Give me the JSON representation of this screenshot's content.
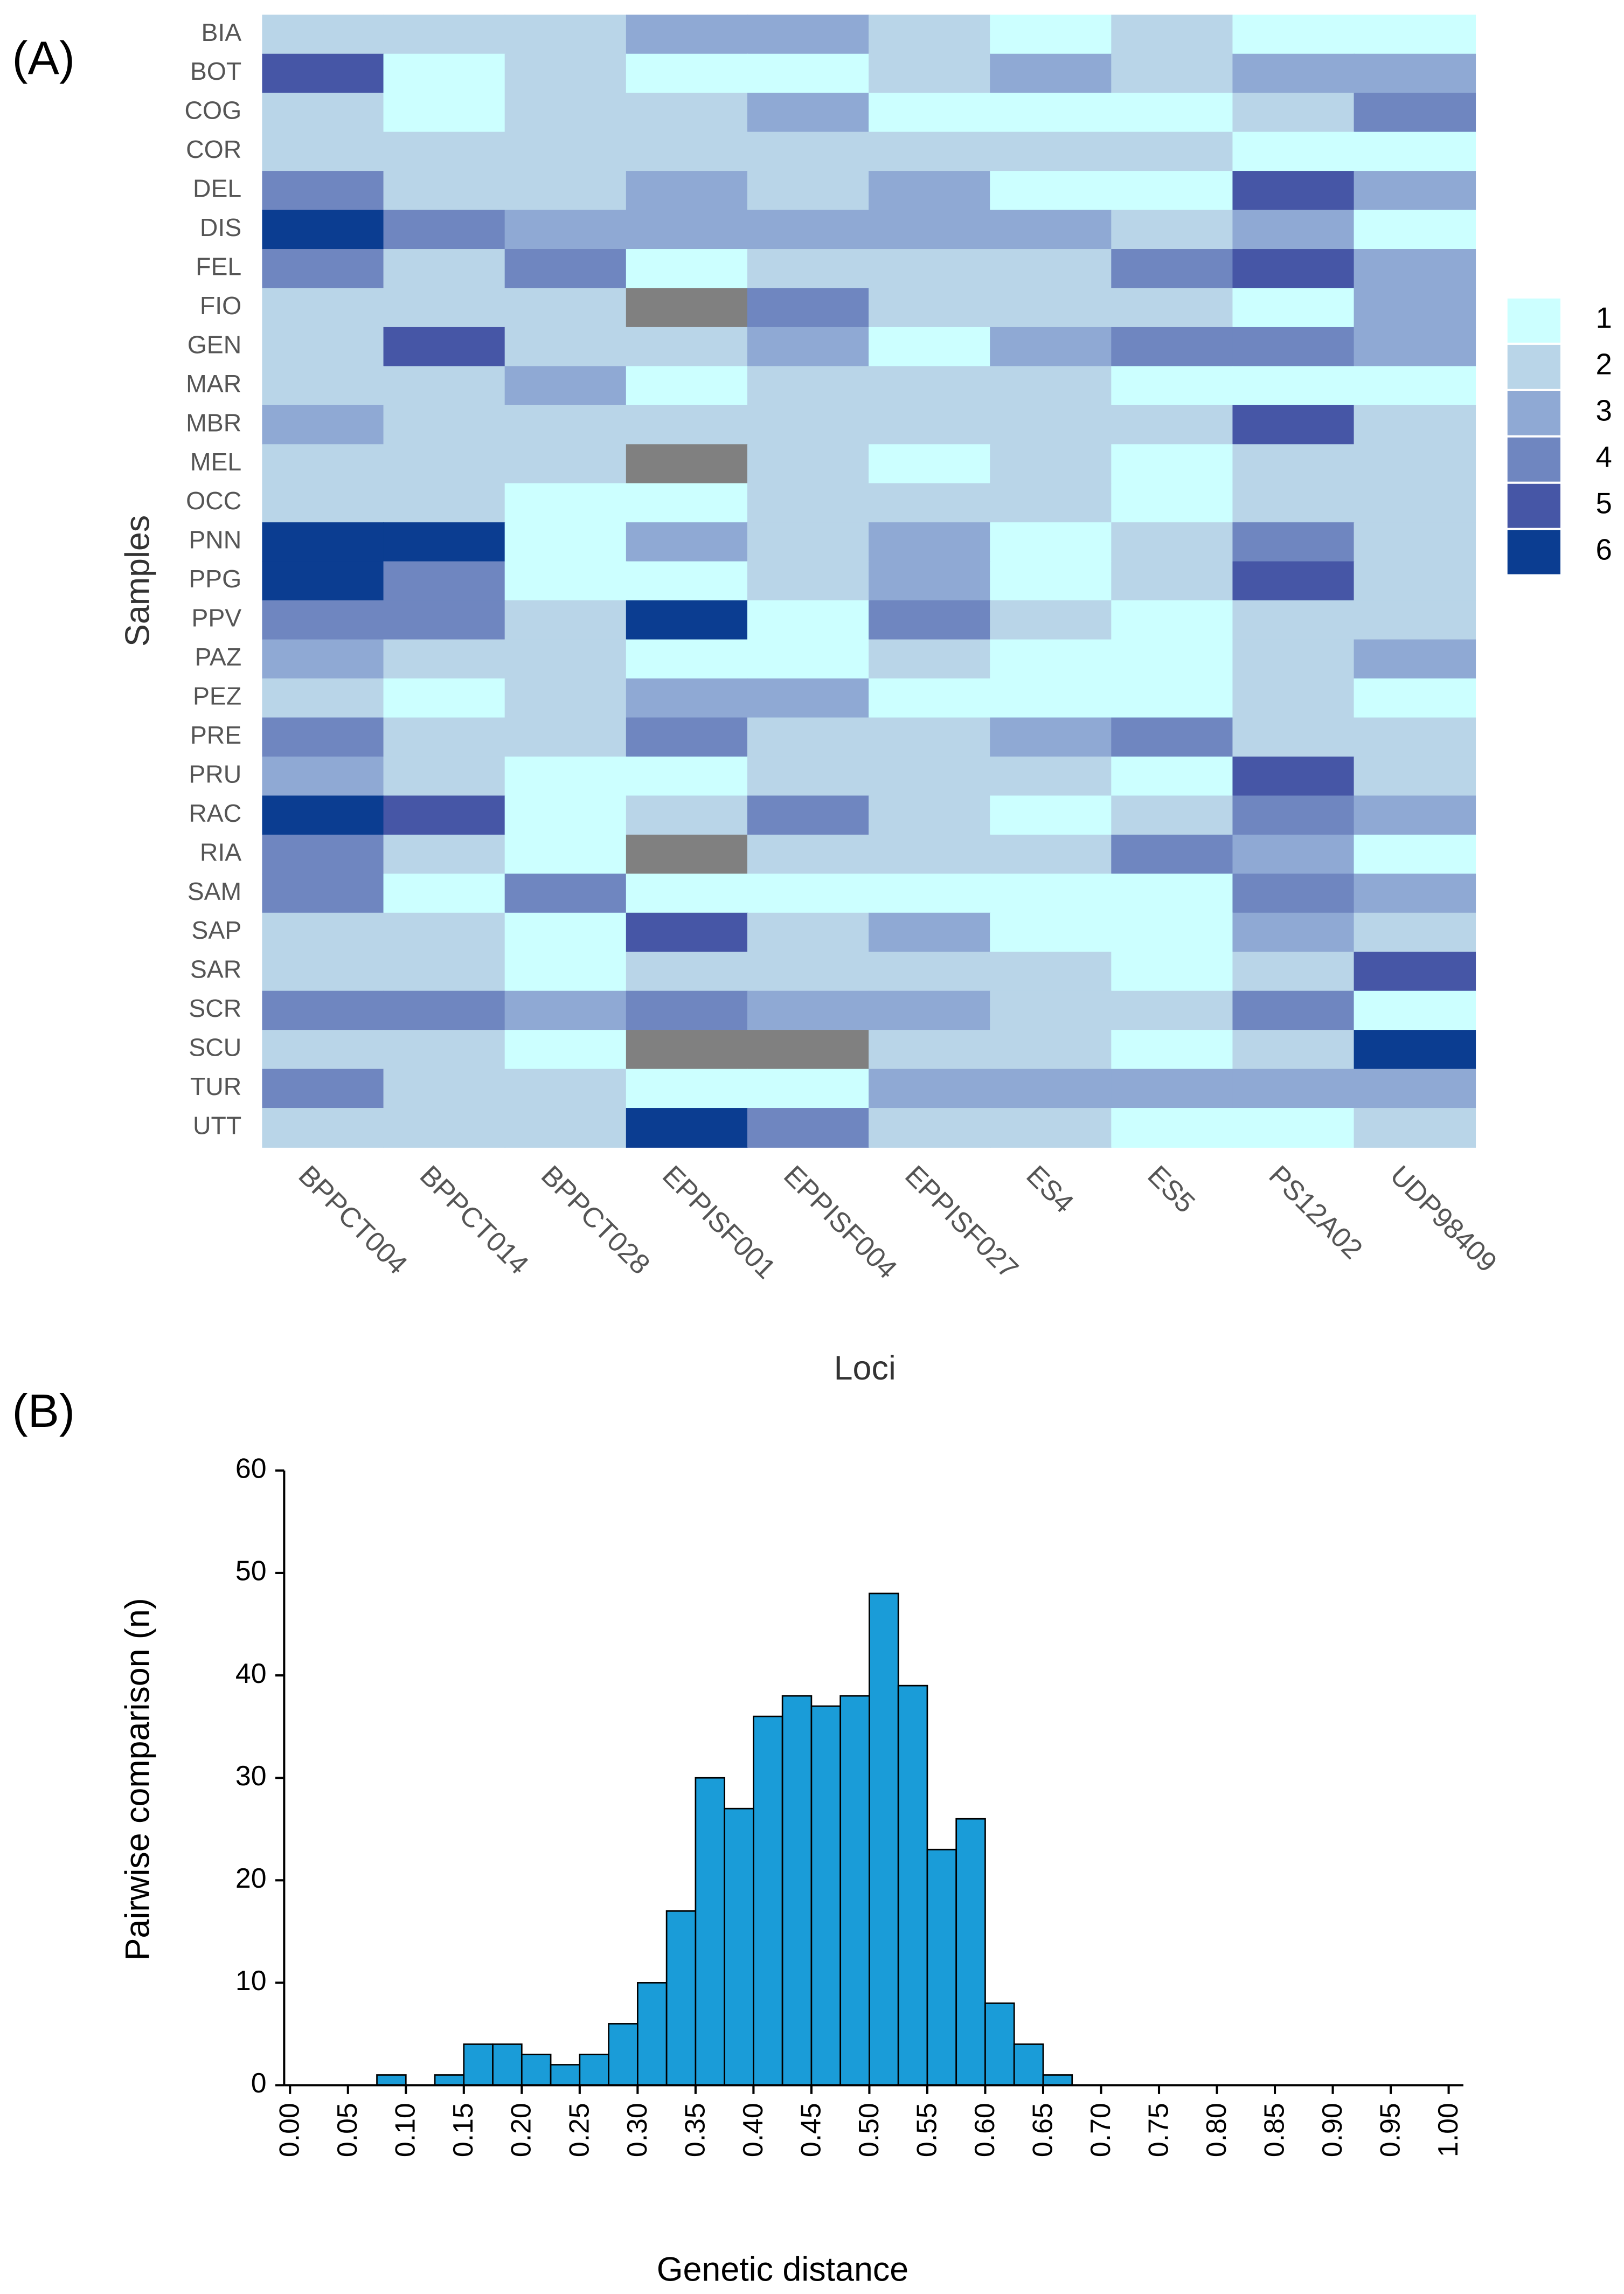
{
  "chart_data": [
    {
      "type": "heatmap",
      "panel_label": "(A)",
      "xlabel": "Loci",
      "ylabel": "Samples",
      "columns": [
        "BPPCT004",
        "BPPCT014",
        "BPPCT028",
        "EPPISF001",
        "EPPISF004",
        "EPPISF027",
        "ES4",
        "ES5",
        "PS12A02",
        "UDP98409"
      ],
      "rows": [
        "BIA",
        "BOT",
        "COG",
        "COR",
        "DEL",
        "DIS",
        "FEL",
        "FIO",
        "GEN",
        "MAR",
        "MBR",
        "MEL",
        "OCC",
        "PNN",
        "PPG",
        "PPV",
        "PAZ",
        "PEZ",
        "PRE",
        "PRU",
        "RAC",
        "RIA",
        "SAM",
        "SAP",
        "SAR",
        "SCR",
        "SCU",
        "TUR",
        "UTT"
      ],
      "values": [
        [
          2,
          2,
          2,
          3,
          3,
          2,
          1,
          2,
          1,
          1
        ],
        [
          5,
          1,
          2,
          1,
          1,
          2,
          3,
          2,
          3,
          3
        ],
        [
          2,
          1,
          2,
          2,
          3,
          1,
          1,
          1,
          2,
          4
        ],
        [
          2,
          2,
          2,
          2,
          2,
          2,
          2,
          2,
          1,
          1
        ],
        [
          4,
          2,
          2,
          3,
          2,
          3,
          1,
          1,
          5,
          3
        ],
        [
          6,
          4,
          3,
          3,
          3,
          3,
          3,
          2,
          3,
          1
        ],
        [
          4,
          2,
          4,
          1,
          2,
          2,
          2,
          4,
          5,
          3
        ],
        [
          2,
          2,
          2,
          null,
          4,
          2,
          2,
          2,
          1,
          3
        ],
        [
          2,
          5,
          2,
          2,
          3,
          1,
          3,
          4,
          4,
          3
        ],
        [
          2,
          2,
          3,
          1,
          2,
          2,
          2,
          1,
          1,
          1
        ],
        [
          3,
          2,
          2,
          2,
          2,
          2,
          2,
          2,
          5,
          2
        ],
        [
          2,
          2,
          2,
          null,
          2,
          1,
          2,
          1,
          2,
          2
        ],
        [
          2,
          2,
          1,
          1,
          2,
          2,
          2,
          1,
          2,
          2
        ],
        [
          6,
          6,
          1,
          3,
          2,
          3,
          1,
          2,
          4,
          2
        ],
        [
          6,
          4,
          1,
          1,
          2,
          3,
          1,
          2,
          5,
          2
        ],
        [
          4,
          4,
          2,
          6,
          1,
          4,
          2,
          1,
          2,
          2
        ],
        [
          3,
          2,
          2,
          1,
          1,
          2,
          1,
          1,
          2,
          3
        ],
        [
          2,
          1,
          2,
          3,
          3,
          1,
          1,
          1,
          2,
          1
        ],
        [
          4,
          2,
          2,
          4,
          2,
          2,
          3,
          4,
          2,
          2
        ],
        [
          3,
          2,
          1,
          1,
          2,
          2,
          2,
          1,
          5,
          2
        ],
        [
          6,
          5,
          1,
          2,
          4,
          2,
          1,
          2,
          4,
          3
        ],
        [
          4,
          2,
          1,
          null,
          2,
          2,
          2,
          4,
          3,
          1
        ],
        [
          4,
          1,
          4,
          1,
          1,
          1,
          1,
          1,
          4,
          3
        ],
        [
          2,
          2,
          1,
          5,
          2,
          3,
          1,
          1,
          3,
          2
        ],
        [
          2,
          2,
          1,
          2,
          2,
          2,
          2,
          1,
          2,
          5
        ],
        [
          4,
          4,
          3,
          4,
          3,
          3,
          2,
          2,
          4,
          1
        ],
        [
          2,
          2,
          1,
          null,
          null,
          2,
          2,
          1,
          2,
          6
        ],
        [
          4,
          2,
          2,
          1,
          1,
          3,
          3,
          3,
          3,
          3
        ],
        [
          2,
          2,
          2,
          6,
          4,
          2,
          2,
          1,
          1,
          2
        ]
      ],
      "legend": {
        "values": [
          1,
          2,
          3,
          4,
          5,
          6
        ],
        "colors": [
          "#ccffff",
          "#b9d5e8",
          "#8fa9d4",
          "#6f86c0",
          "#4656a6",
          "#0b3d91"
        ]
      },
      "missing_color": "#808080"
    },
    {
      "type": "histogram",
      "panel_label": "(B)",
      "xlabel": "Genetic distance",
      "ylabel": "Pairwise comparison (n)",
      "color": "#1a9cd8",
      "bins": [
        0,
        0.025,
        0.05,
        0.075,
        0.1,
        0.125,
        0.15,
        0.175,
        0.2,
        0.225,
        0.25,
        0.275,
        0.3,
        0.325,
        0.35,
        0.375,
        0.4,
        0.425,
        0.45,
        0.475,
        0.5,
        0.525,
        0.55,
        0.575,
        0.6,
        0.625,
        0.65,
        0.675,
        0.7,
        0.725,
        0.75,
        0.775,
        0.8,
        0.825,
        0.85,
        0.875,
        0.9,
        0.925,
        0.95,
        0.975,
        1
      ],
      "counts": [
        0,
        0,
        0,
        1,
        0,
        1,
        4,
        4,
        3,
        2,
        3,
        6,
        10,
        17,
        30,
        27,
        36,
        38,
        37,
        38,
        48,
        39,
        23,
        26,
        8,
        4,
        1,
        0,
        0,
        0,
        0,
        0,
        0,
        0,
        0,
        0,
        0,
        0,
        0,
        0
      ],
      "xlim": [
        0,
        1
      ],
      "xticks": [
        {
          "value": 0,
          "label": "0.00"
        },
        0.05,
        {
          "value": 0.1,
          "label": "0.10"
        },
        0.15,
        {
          "value": 0.2,
          "label": "0.20"
        },
        0.25,
        {
          "value": 0.3,
          "label": "0.30"
        },
        0.35,
        {
          "value": 0.4,
          "label": "0.40"
        },
        0.45,
        {
          "value": 0.5,
          "label": "0.50"
        },
        0.55,
        {
          "value": 0.6,
          "label": "0.60"
        },
        0.65,
        {
          "value": 0.7,
          "label": "0.70"
        },
        0.75,
        {
          "value": 0.8,
          "label": "0.80"
        },
        0.85,
        {
          "value": 0.9,
          "label": "0.90"
        },
        0.95,
        {
          "value": 1,
          "label": "1.00"
        }
      ],
      "ylim": [
        0,
        60
      ],
      "yticks": [
        0,
        10,
        20,
        30,
        40,
        50,
        60
      ]
    }
  ]
}
